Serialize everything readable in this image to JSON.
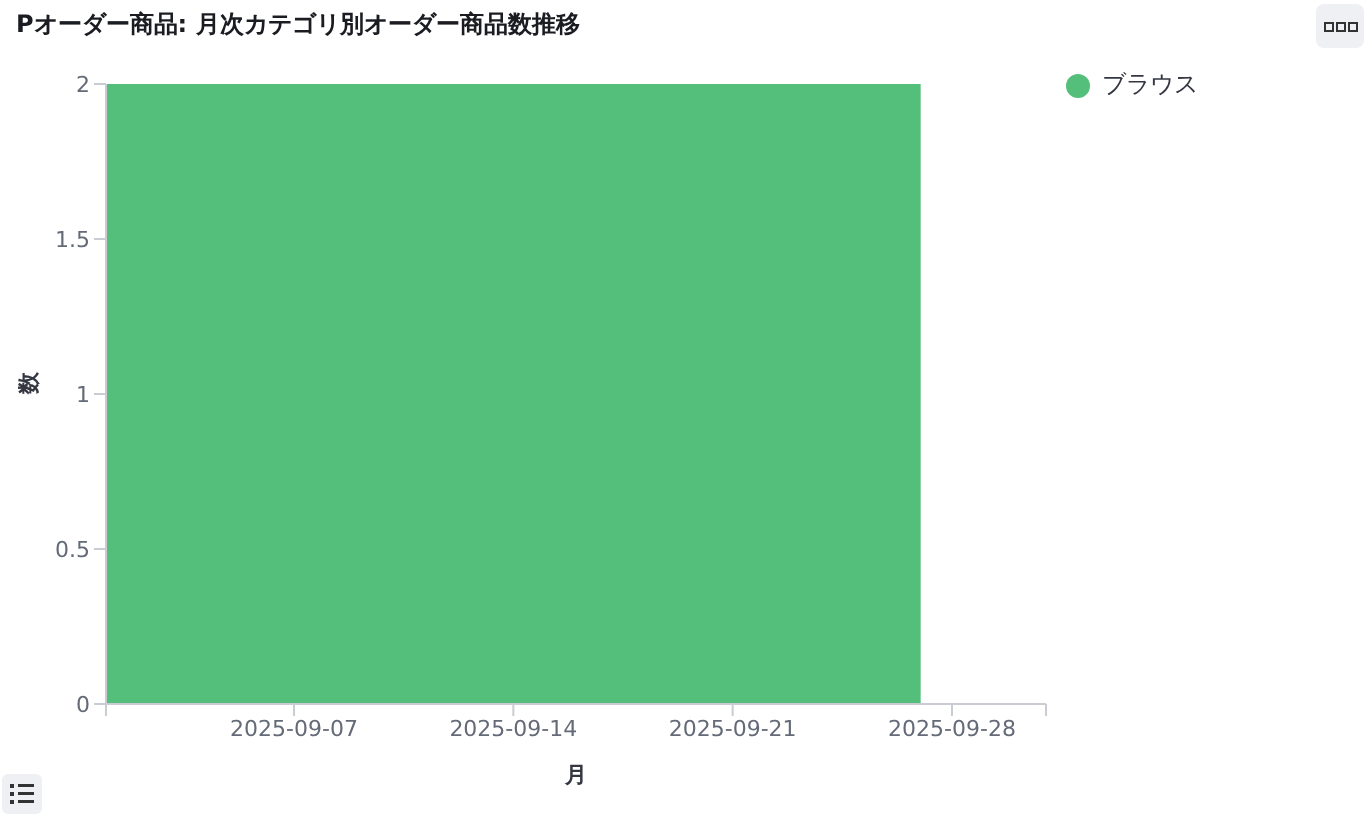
{
  "chart_data": {
    "type": "histogram",
    "title": "Pオーダー商品: 月次カテゴリ別オーダー商品数推移",
    "xlabel": "月",
    "ylabel": "数",
    "bins": [
      "2025-09-01",
      "2025-09-27"
    ],
    "series": [
      {
        "name": "ブラウス",
        "color": "#54bf7a",
        "values": [
          2
        ]
      }
    ],
    "xlim": [
      "2025-09-01",
      "2025-10-01"
    ],
    "xticks": [
      {
        "value": "2025-09-01",
        "label": null
      },
      "2025-09-07",
      "2025-09-14",
      "2025-09-21",
      "2025-09-28",
      {
        "value": "2025-10-01",
        "label": null
      }
    ],
    "ylim": [
      0,
      2
    ],
    "yticks": [
      0,
      0.5,
      1,
      1.5,
      2
    ],
    "grid": false,
    "legend": "top right"
  }
}
